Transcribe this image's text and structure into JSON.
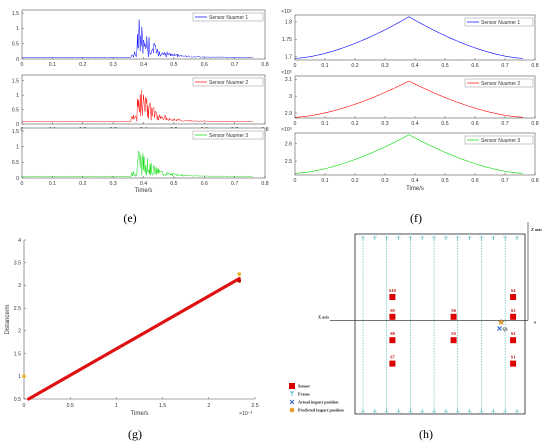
{
  "panel_labels": {
    "e": "(e)",
    "f": "(f)",
    "g": "(g)",
    "h": "(h)"
  },
  "chart_data": [
    {
      "id": "e",
      "type": "line",
      "subplots": [
        {
          "name": "Sensor Nuumer 1",
          "color": "#0000ff",
          "ylim": [
            0,
            1.6
          ],
          "yticks": [
            "0",
            "0.5",
            "1",
            "1.5"
          ],
          "peak": 1.52,
          "baseline": 0.05
        },
        {
          "name": "Sensor Nuumer 2",
          "color": "#ff0000",
          "ylim": [
            0,
            1.7
          ],
          "yticks": [
            "0",
            "0.5",
            "1",
            "1.5"
          ],
          "peak": 1.55,
          "baseline": 0.08
        },
        {
          "name": "Sensor Nuumer 3",
          "color": "#00dd00",
          "ylim": [
            0,
            1.6
          ],
          "yticks": [
            "0",
            "0.5",
            "1",
            "1.5"
          ],
          "peak": 1.12,
          "baseline": 0.05
        }
      ],
      "xlim": [
        0,
        0.8
      ],
      "xticks": [
        "0",
        "0.1",
        "0.2",
        "0.3",
        "0.4",
        "0.5",
        "0.6",
        "0.7",
        "0.8"
      ],
      "impact_time": 0.38,
      "signal_end": 0.76,
      "xlabel": "Time/s"
    },
    {
      "id": "f",
      "type": "line",
      "subplots": [
        {
          "name": "Sensor Nuumer 1",
          "color": "#0000ff",
          "exponent": "×10⁵",
          "ylim": [
            1.69,
            1.82
          ],
          "yticks": [
            "1.7",
            "1.75",
            "1.8"
          ],
          "start": 1.695,
          "peak": 1.815
        },
        {
          "name": "Sensor Nuumer 2",
          "color": "#ff0000",
          "exponent": "×10⁵",
          "ylim": [
            2.87,
            3.12
          ],
          "yticks": [
            "2.9",
            "3",
            "3.1"
          ],
          "start": 2.875,
          "peak": 3.09
        },
        {
          "name": "Sensor Nuumer 3",
          "color": "#00dd00",
          "exponent": "×10⁵",
          "ylim": [
            2.42,
            2.66
          ],
          "yticks": [
            "2.5",
            "2.6"
          ],
          "start": 2.43,
          "peak": 2.65
        }
      ],
      "xlim": [
        0,
        0.8
      ],
      "xticks": [
        "0",
        "0.1",
        "0.2",
        "0.3",
        "0.4",
        "0.5",
        "0.6",
        "0.7",
        "0.8"
      ],
      "peak_time": 0.38,
      "signal_end": 0.76,
      "xlabel": "Time/s"
    },
    {
      "id": "g",
      "type": "line",
      "xlabel": "Time/s",
      "ylabel": "Distance/m",
      "x_exponent": "×10⁻³",
      "xlim": [
        0,
        2.5
      ],
      "ylim": [
        0.5,
        4
      ],
      "xticks": [
        "0",
        "0.5",
        "1",
        "1.5",
        "2",
        "2.5"
      ],
      "yticks": [
        "0.5",
        "1",
        "1.5",
        "2",
        "2.5",
        "3",
        "3.5",
        "4"
      ],
      "series": [
        {
          "color": "#e01010",
          "x": [
            0.05,
            2.33
          ],
          "y": [
            0.5,
            3.15
          ]
        }
      ],
      "points": [
        {
          "x": 0.0,
          "y": 1.0,
          "color": "#e8b020"
        },
        {
          "x": 2.33,
          "y": 3.25,
          "color": "#e8b020"
        },
        {
          "x": 2.33,
          "y": 3.1,
          "color": "#c00000"
        }
      ]
    },
    {
      "id": "h",
      "type": "scatter",
      "axis_labels": {
        "x": "X axis",
        "z": "Z axis",
        "origin": "o"
      },
      "frame_count": 14,
      "sensors": [
        {
          "label": "S10",
          "x": 0.22,
          "y": 0.35
        },
        {
          "label": "S9",
          "x": 0.22,
          "y": 0.46
        },
        {
          "label": "S8",
          "x": 0.22,
          "y": 0.59
        },
        {
          "label": "S7",
          "x": 0.22,
          "y": 0.72
        },
        {
          "label": "S6",
          "x": 0.58,
          "y": 0.46
        },
        {
          "label": "S5",
          "x": 0.58,
          "y": 0.59
        },
        {
          "label": "S4",
          "x": 0.93,
          "y": 0.35
        },
        {
          "label": "S3",
          "x": 0.93,
          "y": 0.46
        },
        {
          "label": "S2",
          "x": 0.93,
          "y": 0.59
        },
        {
          "label": "S1",
          "x": 0.93,
          "y": 0.72
        }
      ],
      "actual_impact": {
        "x": 0.85,
        "y": 0.525,
        "label": "Q1"
      },
      "predicted_impact": {
        "x": 0.86,
        "y": 0.49
      },
      "legend": [
        "Sensor",
        "Frame",
        "Actual impact position",
        "Predicted impact position"
      ],
      "colors": {
        "sensor": "#dd0000",
        "frame": "#1aa6a6",
        "actual": "#3366cc",
        "predicted": "#e8a030"
      }
    }
  ]
}
